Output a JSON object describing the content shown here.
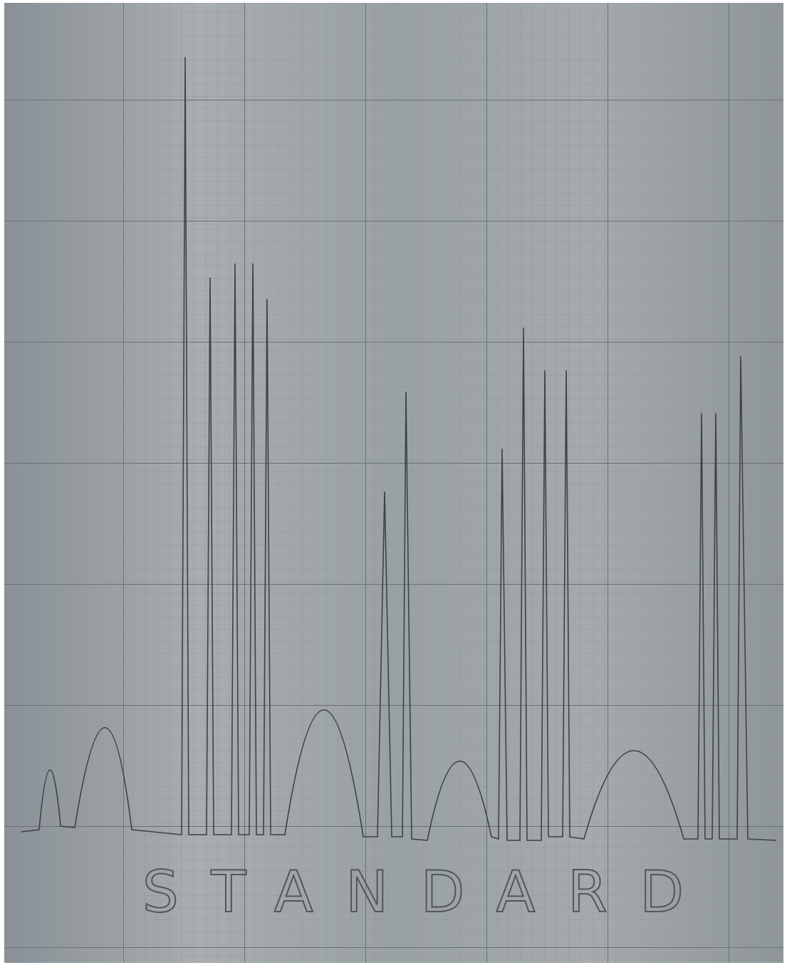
{
  "label": "STANDARD"
}
